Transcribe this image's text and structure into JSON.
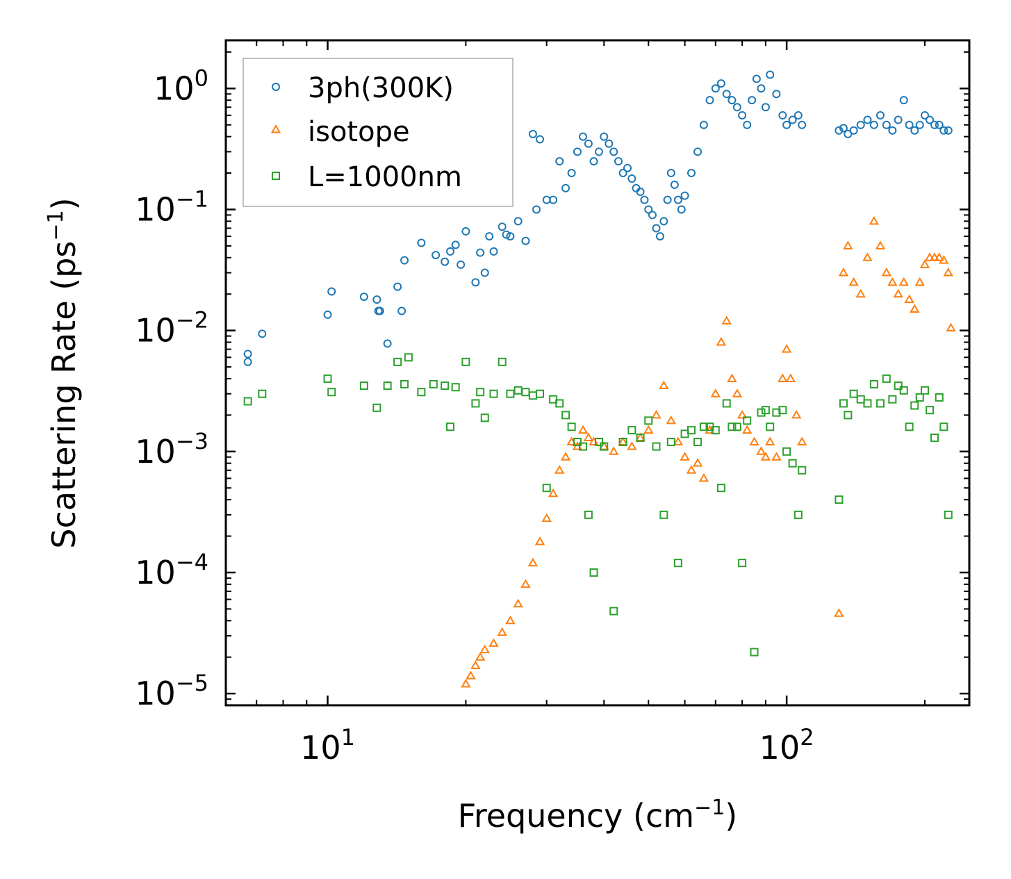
{
  "chart_data": {
    "type": "scatter",
    "xscale": "log",
    "yscale": "log",
    "xlabel": {
      "base": "Frequency (cm",
      "sup": "−1",
      "tail": ")"
    },
    "ylabel": {
      "base": "Scattering Rate (ps",
      "sup": "−1",
      "tail": ")"
    },
    "xlim": [
      6,
      250
    ],
    "ylim": [
      8e-06,
      2.5
    ],
    "xticks": [
      {
        "value": 10,
        "base": "10",
        "exp": "1"
      },
      {
        "value": 100,
        "base": "10",
        "exp": "2"
      }
    ],
    "yticks": [
      {
        "value": 1,
        "base": "10",
        "exp": "0"
      },
      {
        "value": 0.1,
        "base": "10",
        "exp": "−1"
      },
      {
        "value": 0.01,
        "base": "10",
        "exp": "−2"
      },
      {
        "value": 0.001,
        "base": "10",
        "exp": "−3"
      },
      {
        "value": 0.0001,
        "base": "10",
        "exp": "−4"
      },
      {
        "value": 1e-05,
        "base": "10",
        "exp": "−5"
      }
    ],
    "legend_position": "top-left",
    "series": [
      {
        "name": "3ph(300K)",
        "marker": "circle",
        "color": "#1f77b4",
        "x": [
          6.7,
          6.7,
          7.2,
          10.0,
          10.2,
          12.0,
          12.8,
          12.9,
          13.0,
          13.5,
          14.2,
          14.5,
          14.7,
          16.0,
          17.2,
          18.0,
          18.5,
          19.0,
          19.5,
          20.0,
          21.0,
          21.5,
          22.0,
          22.5,
          23.0,
          24.0,
          24.5,
          25.0,
          26.0,
          27.0,
          28.0,
          28.5,
          29.0,
          30.0,
          31.0,
          32.0,
          33.0,
          34.0,
          35.0,
          36.0,
          37.0,
          38.0,
          39.0,
          40.0,
          41.0,
          42.0,
          43.0,
          44.0,
          45.0,
          46.0,
          47.0,
          48.0,
          49.0,
          50.0,
          51.0,
          52.0,
          53.0,
          54.0,
          55.0,
          56.0,
          57.0,
          58.0,
          59.0,
          60.0,
          62.0,
          64.0,
          66.0,
          68.0,
          70.0,
          72.0,
          74.0,
          76.0,
          78.0,
          80.0,
          82.0,
          84.0,
          86.0,
          88.0,
          90.0,
          92.0,
          95.0,
          98.0,
          100.0,
          103.0,
          106.0,
          108.0,
          130.0,
          133.0,
          136.0,
          140.0,
          145.0,
          150.0,
          155.0,
          160.0,
          165.0,
          170.0,
          175.0,
          180.0,
          185.0,
          190.0,
          195.0,
          200.0,
          205.0,
          210.0,
          215.0,
          220.0,
          225.0
        ],
        "y": [
          0.0064,
          0.0055,
          0.0094,
          0.0135,
          0.021,
          0.019,
          0.018,
          0.0145,
          0.0145,
          0.0078,
          0.023,
          0.0145,
          0.038,
          0.053,
          0.042,
          0.037,
          0.045,
          0.051,
          0.035,
          0.066,
          0.025,
          0.044,
          0.03,
          0.06,
          0.045,
          0.072,
          0.062,
          0.06,
          0.08,
          0.055,
          0.42,
          0.1,
          0.38,
          0.12,
          0.12,
          0.25,
          0.15,
          0.2,
          0.3,
          0.4,
          0.35,
          0.25,
          0.3,
          0.4,
          0.35,
          0.3,
          0.25,
          0.2,
          0.22,
          0.18,
          0.15,
          0.14,
          0.12,
          0.1,
          0.09,
          0.07,
          0.06,
          0.08,
          0.12,
          0.2,
          0.16,
          0.12,
          0.1,
          0.13,
          0.2,
          0.3,
          0.5,
          0.8,
          1.0,
          1.1,
          0.9,
          0.8,
          0.7,
          0.6,
          0.5,
          0.8,
          1.2,
          1.0,
          0.7,
          1.3,
          0.9,
          0.6,
          0.5,
          0.55,
          0.6,
          0.5,
          0.45,
          0.47,
          0.42,
          0.45,
          0.5,
          0.55,
          0.5,
          0.6,
          0.5,
          0.45,
          0.55,
          0.8,
          0.5,
          0.45,
          0.5,
          0.6,
          0.55,
          0.5,
          0.5,
          0.45,
          0.45
        ]
      },
      {
        "name": "isotope",
        "marker": "triangle",
        "color": "#ff7f0e",
        "x": [
          20.0,
          20.5,
          21.0,
          21.5,
          22.0,
          23.0,
          24.0,
          25.0,
          26.0,
          27.0,
          28.0,
          29.0,
          30.0,
          31.0,
          32.0,
          33.0,
          34.0,
          35.0,
          36.0,
          37.0,
          38.0,
          40.0,
          42.0,
          44.0,
          46.0,
          48.0,
          50.0,
          52.0,
          54.0,
          56.0,
          58.0,
          60.0,
          62.0,
          64.0,
          66.0,
          68.0,
          70.0,
          72.0,
          74.0,
          76.0,
          78.0,
          80.0,
          82.0,
          85.0,
          88.0,
          90.0,
          92.0,
          95.0,
          98.0,
          100.0,
          102.0,
          105.0,
          108.0,
          130.0,
          133.0,
          136.0,
          140.0,
          145.0,
          150.0,
          155.0,
          160.0,
          165.0,
          170.0,
          175.0,
          180.0,
          185.0,
          190.0,
          195.0,
          200.0,
          205.0,
          210.0,
          215.0,
          220.0,
          225.0,
          228.0
        ],
        "y": [
          1.2e-05,
          1.4e-05,
          1.7e-05,
          2e-05,
          2.3e-05,
          2.6e-05,
          3.2e-05,
          4e-05,
          5.5e-05,
          8e-05,
          0.00012,
          0.00018,
          0.00028,
          0.00045,
          0.0007,
          0.0009,
          0.0012,
          0.0011,
          0.0015,
          0.0013,
          0.0012,
          0.0011,
          0.001,
          0.0012,
          0.0011,
          0.0013,
          0.0015,
          0.002,
          0.0035,
          0.0018,
          0.0012,
          0.0009,
          0.0007,
          0.0008,
          0.0006,
          0.0015,
          0.003,
          0.008,
          0.012,
          0.004,
          0.003,
          0.002,
          0.0015,
          0.0012,
          0.001,
          0.0009,
          0.0012,
          0.0009,
          0.004,
          0.007,
          0.004,
          0.002,
          0.0012,
          4.6e-05,
          0.03,
          0.05,
          0.025,
          0.02,
          0.04,
          0.08,
          0.05,
          0.03,
          0.025,
          0.02,
          0.025,
          0.018,
          0.015,
          0.025,
          0.035,
          0.04,
          0.04,
          0.04,
          0.038,
          0.03,
          0.0105
        ]
      },
      {
        "name": "L=1000nm",
        "marker": "square",
        "color": "#2ca02c",
        "x": [
          6.7,
          7.2,
          10.0,
          10.2,
          12.0,
          12.8,
          13.5,
          14.2,
          14.7,
          15.0,
          16.0,
          17.0,
          18.0,
          18.5,
          19.0,
          20.0,
          21.0,
          21.5,
          22.0,
          23.0,
          24.0,
          25.0,
          26.0,
          27.0,
          28.0,
          29.0,
          30.0,
          31.0,
          32.0,
          33.0,
          34.0,
          35.0,
          36.0,
          37.0,
          38.0,
          39.0,
          40.0,
          42.0,
          44.0,
          46.0,
          48.0,
          50.0,
          52.0,
          54.0,
          56.0,
          58.0,
          60.0,
          62.0,
          64.0,
          66.0,
          68.0,
          70.0,
          72.0,
          74.0,
          76.0,
          78.0,
          80.0,
          82.0,
          85.0,
          88.0,
          90.0,
          92.0,
          95.0,
          98.0,
          100.0,
          103.0,
          106.0,
          108.0,
          130.0,
          133.0,
          136.0,
          140.0,
          145.0,
          150.0,
          155.0,
          160.0,
          165.0,
          170.0,
          175.0,
          180.0,
          185.0,
          190.0,
          195.0,
          200.0,
          205.0,
          210.0,
          215.0,
          220.0,
          225.0
        ],
        "y": [
          0.0026,
          0.003,
          0.004,
          0.0031,
          0.0035,
          0.0023,
          0.0035,
          0.0055,
          0.0036,
          0.006,
          0.0031,
          0.0036,
          0.0035,
          0.0016,
          0.0034,
          0.0055,
          0.0025,
          0.0031,
          0.0019,
          0.003,
          0.0055,
          0.003,
          0.0032,
          0.0031,
          0.0029,
          0.003,
          0.0005,
          0.0027,
          0.0025,
          0.002,
          0.0016,
          0.0012,
          0.0011,
          0.0003,
          0.0001,
          0.0012,
          0.0011,
          4.8e-05,
          0.0012,
          0.0015,
          0.0013,
          0.0018,
          0.0011,
          0.0003,
          0.0012,
          0.00012,
          0.0014,
          0.0015,
          0.0012,
          0.0016,
          0.0016,
          0.0015,
          0.0005,
          0.0025,
          0.0016,
          0.0016,
          0.00012,
          0.0018,
          2.2e-05,
          0.0021,
          0.0022,
          0.0016,
          0.0021,
          0.0022,
          0.001,
          0.0008,
          0.0003,
          0.0007,
          0.0004,
          0.0025,
          0.002,
          0.003,
          0.0027,
          0.0025,
          0.0036,
          0.0025,
          0.004,
          0.0027,
          0.0035,
          0.0032,
          0.0016,
          0.0024,
          0.0028,
          0.0032,
          0.0022,
          0.0013,
          0.0028,
          0.0016,
          0.0003
        ]
      }
    ]
  }
}
